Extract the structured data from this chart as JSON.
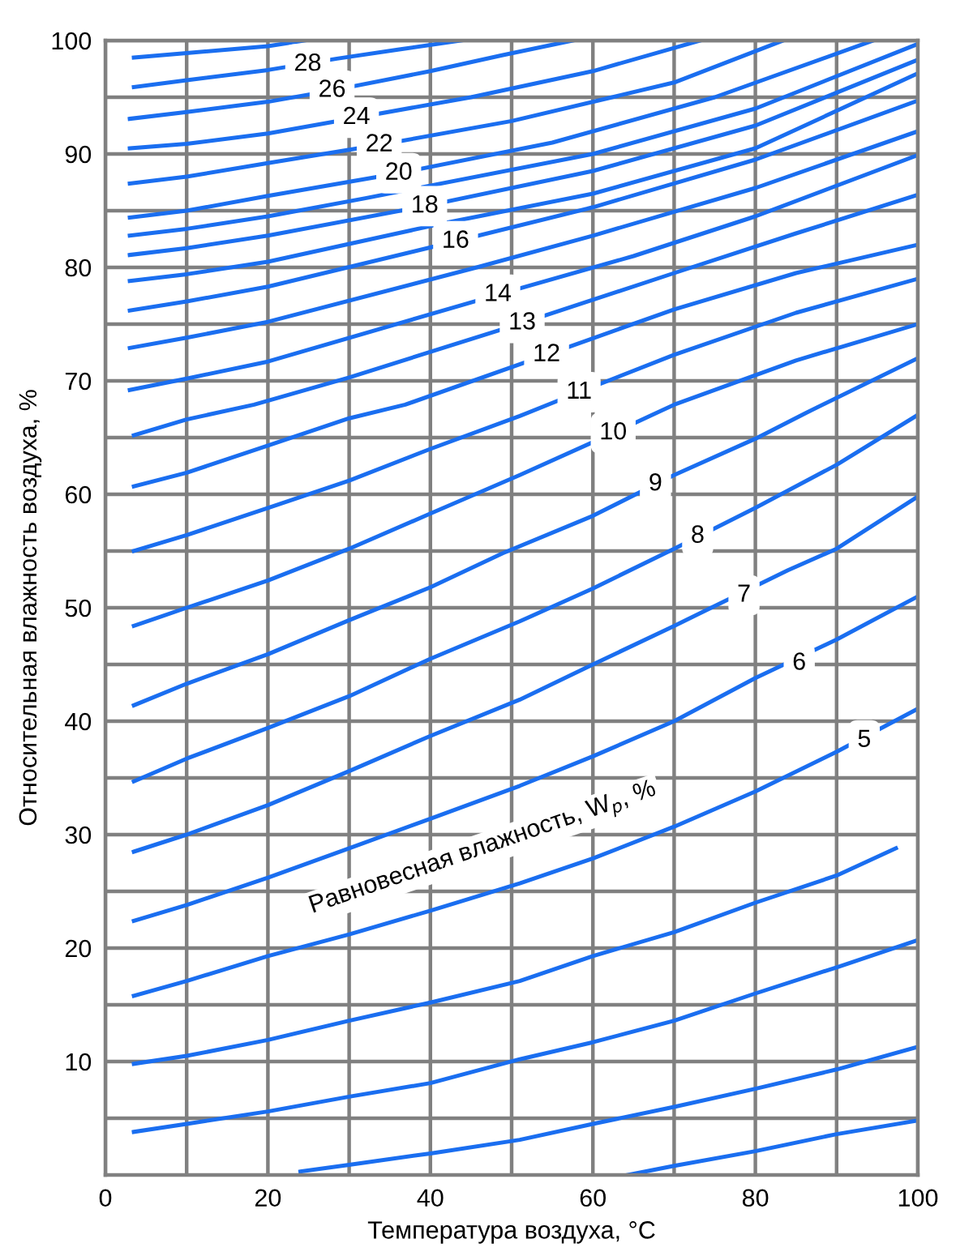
{
  "chart_data": {
    "type": "line",
    "xlabel": "Температура воздуха, °C",
    "ylabel": "Относительная влажность воздуха, %",
    "xlim": [
      0,
      100
    ],
    "ylim": [
      0,
      100
    ],
    "xticks": [
      0,
      {
        "value": 10,
        "label": null
      },
      20,
      {
        "value": 30,
        "label": null
      },
      40,
      {
        "value": 50,
        "label": null
      },
      60,
      {
        "value": 70,
        "label": null
      },
      80,
      {
        "value": 90,
        "label": null
      },
      100
    ],
    "yticks": [
      {
        "value": 5,
        "label": null
      },
      10,
      {
        "value": 15,
        "label": null
      },
      20,
      {
        "value": 25,
        "label": null
      },
      30,
      {
        "value": 35,
        "label": null
      },
      40,
      {
        "value": 45,
        "label": null
      },
      50,
      {
        "value": 55,
        "label": null
      },
      60,
      {
        "value": 65,
        "label": null
      },
      70,
      {
        "value": 75,
        "label": null
      },
      80,
      {
        "value": 85,
        "label": null
      },
      90,
      {
        "value": 95,
        "label": null
      },
      100
    ],
    "grid": true,
    "marker": "none",
    "line_style": "solid",
    "series": [
      {
        "color": "#1a6ef0",
        "x": [
          3.5,
          10,
          20,
          24.5
        ],
        "values": [
          98.5,
          98.9,
          99.5,
          100
        ]
      },
      {
        "color": "#1a6ef0",
        "x": [
          3.5,
          10,
          20,
          28.5,
          36,
          43.8
        ],
        "values": [
          95.9,
          96.5,
          97.4,
          98.4,
          99.2,
          100
        ]
      },
      {
        "color": "#1a6ef0",
        "x": [
          3,
          10,
          20,
          27.9,
          40,
          48.8,
          57.5
        ],
        "values": [
          93.1,
          93.7,
          94.6,
          95.6,
          97.3,
          98.7,
          100
        ]
      },
      {
        "color": "#1a6ef0",
        "x": [
          3,
          10,
          20,
          30.9,
          45,
          60,
          73.2
        ],
        "values": [
          90.5,
          90.9,
          91.8,
          93.2,
          95,
          97.3,
          100
        ]
      },
      {
        "color": "#1a6ef0",
        "x": [
          3,
          10,
          20,
          33.7,
          50,
          70,
          83.4
        ],
        "values": [
          87.4,
          88,
          89.2,
          90.8,
          92.9,
          96.3,
          100
        ]
      },
      {
        "color": "#1a6ef0",
        "x": [
          3,
          10,
          20,
          36.1,
          55,
          75,
          94.5
        ],
        "values": [
          84.4,
          85,
          86.3,
          88.3,
          91,
          95,
          100
        ]
      },
      {
        "color": "#1a6ef0",
        "x": [
          3,
          10,
          20,
          32,
          60,
          80,
          100
        ],
        "values": [
          82.8,
          83.4,
          84.5,
          86.1,
          90,
          94,
          99.7
        ]
      },
      {
        "color": "#1a6ef0",
        "x": [
          3,
          10,
          20,
          39.3,
          60,
          80,
          100
        ],
        "values": [
          81.1,
          81.7,
          82.8,
          85.4,
          88.5,
          92.5,
          98.3
        ]
      },
      {
        "color": "#1a6ef0",
        "x": [
          3,
          10,
          20,
          41,
          60,
          80,
          100
        ],
        "values": [
          78.8,
          79.4,
          80.5,
          83.8,
          86.5,
          90.5,
          97.1
        ]
      },
      {
        "color": "#1a6ef0",
        "x": [
          3,
          10,
          20,
          43.1,
          60,
          80,
          100
        ],
        "values": [
          76.2,
          77,
          78.3,
          82.3,
          85.3,
          89.5,
          94.7
        ]
      },
      {
        "color": "#1a6ef0",
        "x": [
          3,
          10,
          20,
          45.7,
          60,
          80,
          100
        ],
        "values": [
          72.9,
          73.8,
          75.2,
          80,
          82.8,
          87,
          92
        ]
      },
      {
        "color": "#1a6ef0",
        "x": [
          3,
          10,
          20,
          48.3,
          65,
          80,
          100
        ],
        "values": [
          69.2,
          70.2,
          71.7,
          77.6,
          81,
          84.5,
          89.9
        ]
      },
      {
        "color": "#1a6ef0",
        "x": [
          3.5,
          10,
          18.3,
          30,
          51.3,
          70,
          85,
          100
        ],
        "values": [
          65.2,
          66.6,
          67.9,
          70.3,
          75.1,
          79.5,
          83,
          86.4
        ]
      },
      {
        "color": "#1a6ef0",
        "x": [
          3.5,
          10,
          20,
          30,
          36.9,
          54.3,
          70,
          85,
          100
        ],
        "values": [
          60.7,
          61.9,
          64.3,
          66.7,
          67.9,
          72.3,
          76.3,
          79.5,
          82
        ]
      },
      {
        "color": "#1a6ef0",
        "x": [
          3.5,
          10,
          20,
          30,
          40,
          51,
          58.3,
          70,
          85,
          100
        ],
        "values": [
          55,
          56.4,
          58.8,
          61.2,
          64,
          66.9,
          69,
          72.3,
          76,
          79
        ]
      },
      {
        "color": "#1a6ef0",
        "x": [
          3.5,
          10,
          20,
          30,
          40,
          51,
          62.5,
          70,
          85,
          100
        ],
        "values": [
          48.4,
          50,
          52.4,
          55.2,
          58.3,
          61.7,
          65.4,
          67.9,
          71.8,
          75
        ]
      },
      {
        "color": "#1a6ef0",
        "x": [
          3.5,
          10,
          20,
          30,
          40,
          48.9,
          60,
          70,
          80,
          86.3,
          100
        ],
        "values": [
          41.4,
          43.3,
          45.9,
          48.9,
          51.8,
          54.8,
          58.1,
          61.7,
          64.9,
          67.2,
          72
        ]
      },
      {
        "color": "#1a6ef0",
        "x": [
          3.5,
          10,
          20,
          30,
          40,
          51,
          60,
          70,
          80,
          90,
          100
        ],
        "values": [
          34.7,
          36.7,
          39.4,
          42.2,
          45.5,
          48.8,
          51.7,
          55.2,
          58.8,
          62.6,
          67
        ]
      },
      {
        "color": "#1a6ef0",
        "x": [
          3.5,
          10,
          20,
          30,
          40,
          51,
          60,
          70,
          84,
          90,
          100
        ],
        "values": [
          28.5,
          30,
          32.6,
          35.6,
          38.7,
          41.9,
          45,
          48.4,
          53.3,
          55.2,
          59.8
        ]
      },
      {
        "color": "#1a6ef0",
        "x": [
          3.5,
          10,
          20,
          30,
          40,
          51,
          60,
          70,
          80,
          90,
          100
        ],
        "values": [
          22.4,
          23.8,
          26.2,
          28.8,
          31.4,
          34.3,
          36.9,
          40,
          43.8,
          47.2,
          51
        ]
      },
      {
        "color": "#1a6ef0",
        "x": [
          3.5,
          10,
          20,
          30,
          40,
          51,
          60,
          70,
          80,
          90,
          100
        ],
        "values": [
          15.8,
          17.1,
          19.3,
          21.2,
          23.3,
          25.7,
          27.9,
          30.7,
          33.8,
          37.3,
          41.1
        ]
      },
      {
        "color": "#1a6ef0",
        "x": [
          3.5,
          10,
          20,
          30,
          40,
          51,
          60,
          70,
          80,
          90,
          97.3
        ],
        "values": [
          9.8,
          10.5,
          11.9,
          13.6,
          15.2,
          17.1,
          19.3,
          21.4,
          24,
          26.4,
          28.8
        ]
      },
      {
        "color": "#1a6ef0",
        "x": [
          3.5,
          10,
          20,
          30,
          40,
          51,
          60,
          70,
          80,
          90,
          100
        ],
        "values": [
          3.8,
          4.5,
          5.6,
          6.9,
          8.1,
          10.2,
          11.7,
          13.6,
          16,
          18.3,
          20.7
        ]
      },
      {
        "color": "#1a6ef0",
        "x": [
          24,
          30,
          40,
          51,
          60,
          70,
          80,
          90,
          100
        ],
        "values": [
          0.3,
          0.9,
          1.9,
          3.1,
          4.5,
          6,
          7.6,
          9.3,
          11.3
        ]
      },
      {
        "color": "#1a6ef0",
        "x": [
          64.3,
          70,
          80,
          90,
          100
        ],
        "values": [
          0,
          0.8,
          2.1,
          3.6,
          4.8
        ]
      }
    ],
    "annotations": [
      {
        "text": "28",
        "x": 24.9,
        "y": 97.9
      },
      {
        "text": "26",
        "x": 27.9,
        "y": 95.6
      },
      {
        "text": "24",
        "x": 30.9,
        "y": 93.2
      },
      {
        "text": "22",
        "x": 33.7,
        "y": 90.8
      },
      {
        "text": "20",
        "x": 36.1,
        "y": 88.3
      },
      {
        "text": "18",
        "x": 39.3,
        "y": 85.4
      },
      {
        "text": "16",
        "x": 43.1,
        "y": 82.3
      },
      {
        "text": "14",
        "x": 48.3,
        "y": 77.6
      },
      {
        "text": "13",
        "x": 51.3,
        "y": 75.1
      },
      {
        "text": "12",
        "x": 54.3,
        "y": 72.3
      },
      {
        "text": "11",
        "x": 58.3,
        "y": 69.0
      },
      {
        "text": "10",
        "x": 62.5,
        "y": 65.4
      },
      {
        "text": "9",
        "x": 67.7,
        "y": 60.9
      },
      {
        "text": "8",
        "x": 72.9,
        "y": 56.3
      },
      {
        "text": "7",
        "x": 78.6,
        "y": 51.1
      },
      {
        "text": "6",
        "x": 85.4,
        "y": 45.1
      },
      {
        "text": "5",
        "x": 93.4,
        "y": 38.3
      },
      "Равновесная влажность, W$_{p}$, %"
    ]
  }
}
